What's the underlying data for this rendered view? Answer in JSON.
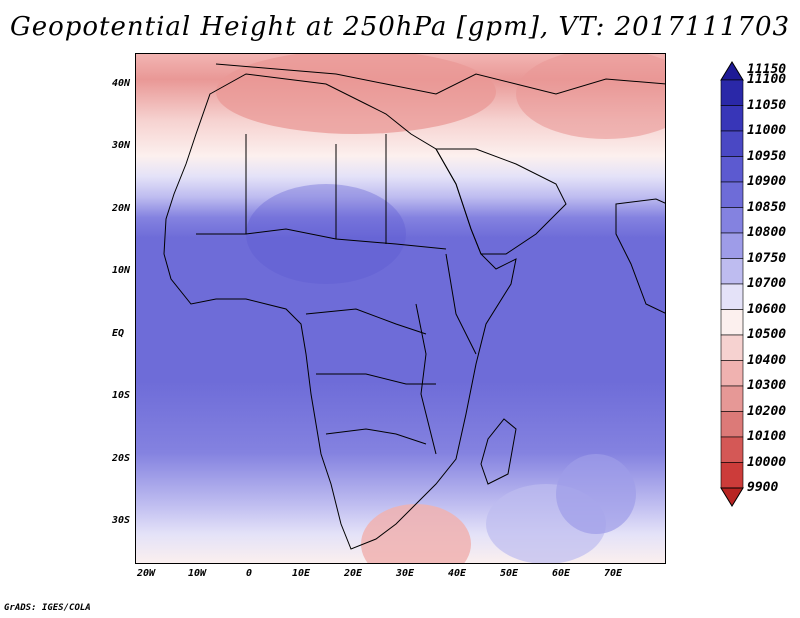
{
  "title": "Geopotential Height at 250hPa [gpm], VT: 2017111703",
  "footer": "GrADS: IGES/COLA",
  "map": {
    "lat_labels": [
      "40N",
      "30N",
      "20N",
      "10N",
      "EQ",
      "10S",
      "20S",
      "30S"
    ],
    "lon_labels": [
      "20W",
      "10W",
      "0",
      "10E",
      "20E",
      "30E",
      "40E",
      "50E",
      "60E",
      "70E"
    ],
    "lat_range": [
      -37,
      44
    ],
    "lon_range": [
      -22,
      80
    ]
  },
  "colorbar": {
    "labels": [
      "11150",
      "11100",
      "11050",
      "11000",
      "10950",
      "10900",
      "10850",
      "10800",
      "10750",
      "10700",
      "10600",
      "10500",
      "10400",
      "10300",
      "10200",
      "10100",
      "10000",
      "9900"
    ],
    "colors": [
      "#1e1a96",
      "#2a28a8",
      "#3836b8",
      "#4a48c4",
      "#5c5ad0",
      "#6e6cd8",
      "#8482e0",
      "#9e9ce8",
      "#bebcf0",
      "#e4e2f8",
      "#fcf0ee",
      "#f6d2d0",
      "#f0b2b0",
      "#e69896",
      "#dc7a78",
      "#d45856",
      "#cc3c3a",
      "#b82422"
    ],
    "gradient": "Geopotential height colour scale"
  }
}
